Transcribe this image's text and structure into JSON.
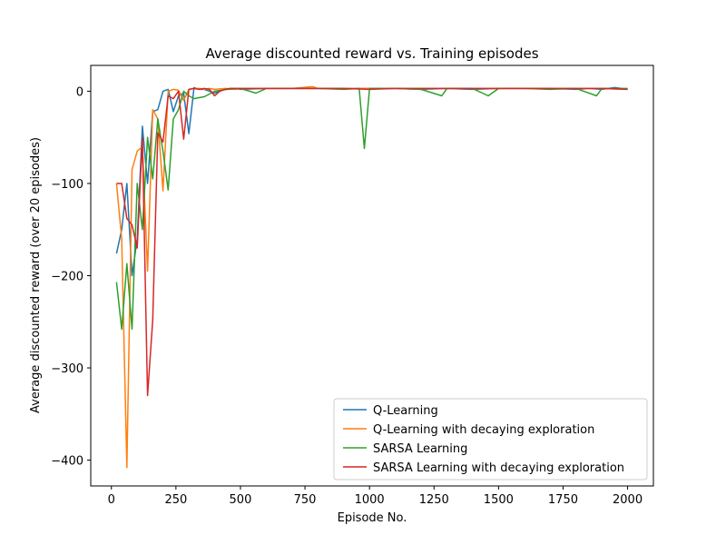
{
  "chart_data": {
    "type": "line",
    "title": "Average discounted reward vs. Training episodes",
    "xlabel": "Episode No.",
    "ylabel": "Average discounted reward (over 20 episodes)",
    "xlim": [
      -80,
      2100
    ],
    "ylim": [
      -428,
      28
    ],
    "xticks": [
      0,
      250,
      500,
      750,
      1000,
      1250,
      1500,
      1750,
      2000
    ],
    "xtick_labels": [
      "0",
      "250",
      "500",
      "750",
      "1000",
      "1250",
      "1500",
      "1750",
      "2000"
    ],
    "yticks": [
      -400,
      -300,
      -200,
      -100,
      0
    ],
    "ytick_labels": [
      "−400",
      "−300",
      "−200",
      "−100",
      "0"
    ],
    "grid": false,
    "legend_position": "lower-right",
    "series": [
      {
        "name": "Q-Learning",
        "color": "#1f77b4",
        "x": [
          20,
          40,
          60,
          80,
          100,
          120,
          140,
          160,
          180,
          200,
          220,
          240,
          260,
          280,
          300,
          320,
          340,
          360,
          380,
          400,
          420,
          440,
          460,
          480,
          500,
          600,
          700,
          800,
          900,
          1000,
          1100,
          1200,
          1300,
          1400,
          1500,
          1600,
          1700,
          1800,
          1850,
          1900,
          1950,
          2000
        ],
        "y": [
          -176,
          -150,
          -100,
          -200,
          -160,
          -38,
          -100,
          -22,
          -20,
          0,
          2,
          -22,
          -5,
          -2,
          -46,
          4,
          2,
          2,
          0,
          -2,
          0,
          2,
          3,
          3,
          2,
          3,
          3,
          3,
          3,
          3,
          3,
          2,
          3,
          2,
          3,
          3,
          3,
          2,
          3,
          2,
          4,
          2
        ]
      },
      {
        "name": "Q-Learning with decaying exploration",
        "color": "#ff7f0e",
        "x": [
          20,
          40,
          60,
          80,
          100,
          120,
          140,
          160,
          180,
          200,
          220,
          240,
          260,
          280,
          300,
          320,
          340,
          360,
          380,
          400,
          440,
          480,
          500,
          600,
          700,
          780,
          800,
          900,
          1000,
          1100,
          1200,
          1300,
          1400,
          1500,
          1600,
          1700,
          1800,
          1900,
          2000
        ],
        "y": [
          -100,
          -160,
          -408,
          -85,
          -65,
          -60,
          -195,
          -20,
          -30,
          -108,
          0,
          2,
          1,
          -10,
          2,
          3,
          3,
          2,
          3,
          2,
          3,
          2,
          3,
          3,
          3,
          5,
          3,
          3,
          3,
          3,
          3,
          3,
          3,
          3,
          3,
          3,
          3,
          3,
          2
        ]
      },
      {
        "name": "SARSA Learning",
        "color": "#2ca02c",
        "x": [
          20,
          40,
          60,
          80,
          100,
          120,
          140,
          160,
          180,
          200,
          220,
          240,
          260,
          280,
          300,
          320,
          340,
          360,
          380,
          400,
          450,
          500,
          560,
          600,
          700,
          800,
          900,
          960,
          980,
          1000,
          1100,
          1200,
          1280,
          1300,
          1400,
          1460,
          1500,
          1600,
          1700,
          1800,
          1880,
          1900,
          2000
        ],
        "y": [
          -207,
          -258,
          -187,
          -258,
          -100,
          -150,
          -50,
          -95,
          -30,
          -65,
          -107,
          -30,
          -20,
          0,
          -5,
          -8,
          -7,
          -6,
          -3,
          0,
          2,
          3,
          -2,
          3,
          3,
          3,
          2,
          3,
          -62,
          3,
          3,
          2,
          -5,
          3,
          3,
          -5,
          3,
          3,
          2,
          3,
          -5,
          3,
          3
        ]
      },
      {
        "name": "SARSA Learning with decaying exploration",
        "color": "#d62728",
        "x": [
          20,
          40,
          60,
          80,
          100,
          120,
          140,
          160,
          180,
          200,
          220,
          240,
          260,
          280,
          300,
          320,
          340,
          360,
          380,
          400,
          420,
          440,
          460,
          500,
          600,
          700,
          800,
          900,
          1000,
          1100,
          1200,
          1300,
          1400,
          1500,
          1600,
          1700,
          1800,
          1900,
          2000
        ],
        "y": [
          -100,
          -100,
          -138,
          -145,
          -170,
          -50,
          -330,
          -248,
          -45,
          -55,
          -5,
          -8,
          0,
          -52,
          2,
          3,
          2,
          3,
          2,
          -5,
          0,
          2,
          3,
          3,
          3,
          3,
          3,
          3,
          2,
          3,
          3,
          3,
          3,
          3,
          3,
          3,
          3,
          3,
          2
        ]
      }
    ]
  }
}
